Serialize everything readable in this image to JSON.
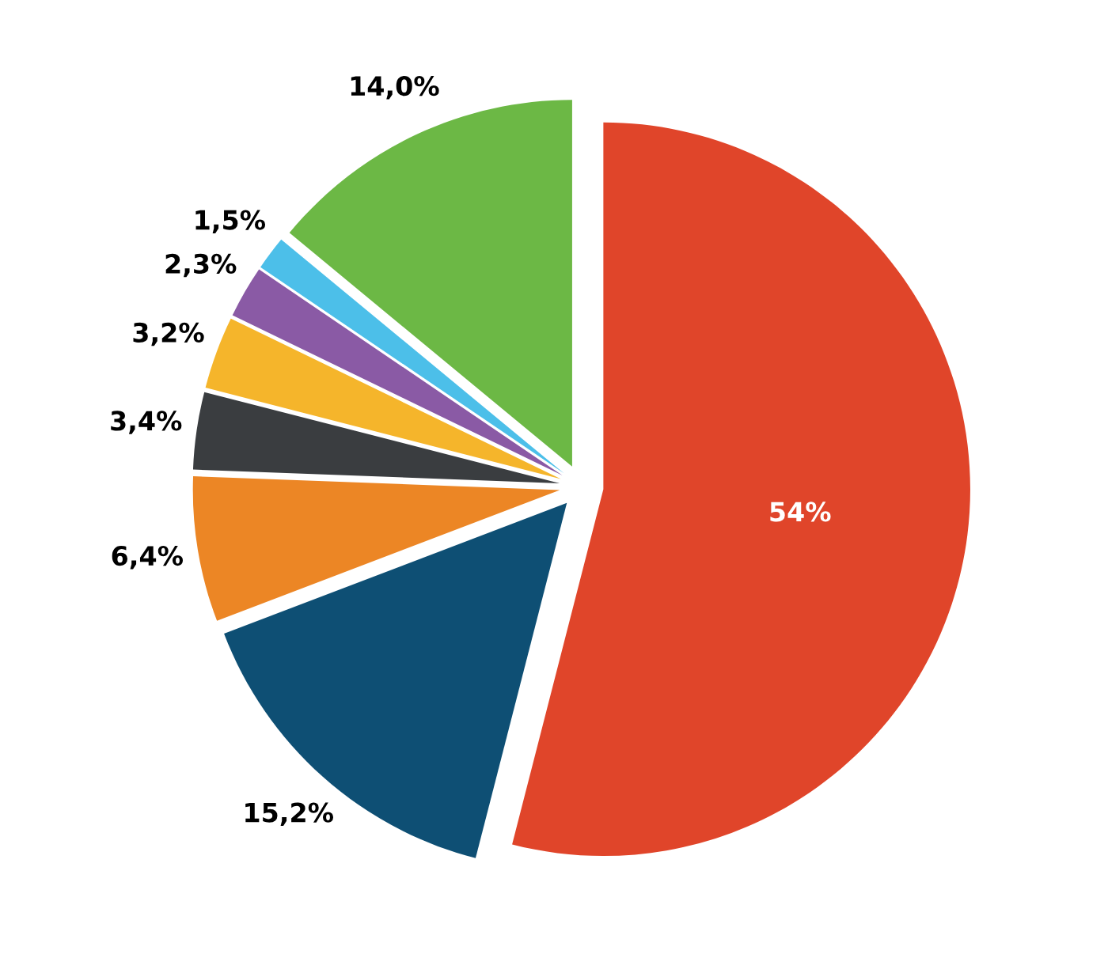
{
  "chart_data": {
    "type": "pie",
    "categories": [
      null,
      null,
      null,
      null,
      null,
      null,
      null,
      null
    ],
    "values": [
      54,
      15.2,
      6.4,
      3.4,
      3.2,
      2.3,
      1.5,
      14.0
    ],
    "colors": [
      "#e0452a",
      "#0e4f74",
      "#ec8625",
      "#3a3d40",
      "#f5b52b",
      "#8a5aa5",
      "#4cbfe9",
      "#6cb845"
    ],
    "value_labels": [
      "54%",
      "15,2%",
      "6,4%",
      "3,4%",
      "3,2%",
      "2,3%",
      "1,5%",
      "14,0%"
    ],
    "legend": false
  }
}
